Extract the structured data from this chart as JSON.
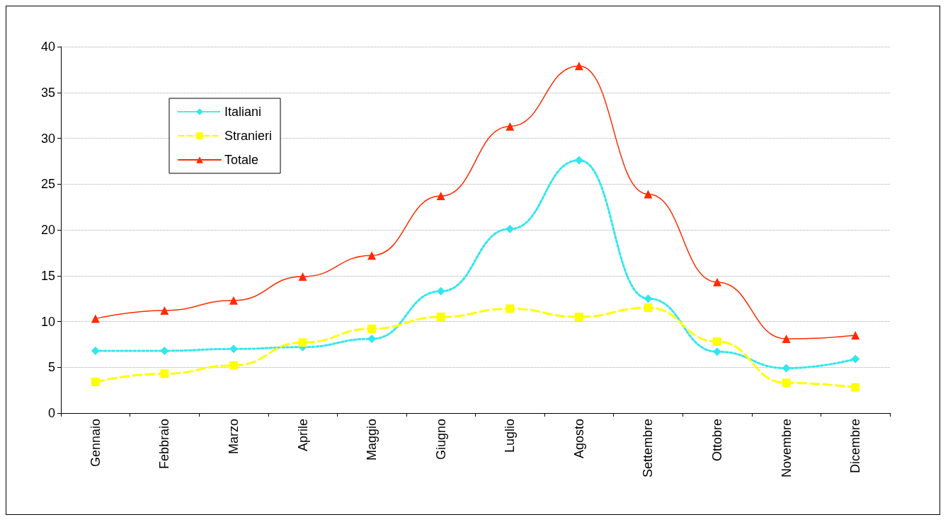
{
  "chart_data": {
    "type": "line",
    "categories": [
      "Gennaio",
      "Febbraio",
      "Marzo",
      "Aprile",
      "Maggio",
      "Giugno",
      "Luglio",
      "Agosto",
      "Settembre",
      "Ottobre",
      "Novembre",
      "Dicembre"
    ],
    "series": [
      {
        "name": "Italiani",
        "color": "#33e6ee",
        "marker": "diamond",
        "line_style": "dotted",
        "values": [
          6.8,
          6.8,
          7.0,
          7.2,
          8.1,
          13.3,
          20.1,
          27.6,
          12.5,
          6.7,
          4.9,
          5.9
        ]
      },
      {
        "name": "Stranieri",
        "color": "#ffff00",
        "marker": "square",
        "line_style": "dashed",
        "values": [
          3.4,
          4.3,
          5.2,
          7.7,
          9.2,
          10.5,
          11.4,
          10.5,
          11.5,
          7.8,
          3.3,
          2.8
        ]
      },
      {
        "name": "Totale",
        "color": "#ff2a00",
        "marker": "triangle",
        "line_style": "solid",
        "values": [
          10.3,
          11.2,
          12.3,
          14.9,
          17.2,
          23.7,
          31.3,
          37.9,
          23.9,
          14.3,
          8.1,
          8.5
        ]
      }
    ],
    "ylim": [
      0,
      40
    ],
    "yticks": [
      0,
      5,
      10,
      15,
      20,
      25,
      30,
      35,
      40
    ],
    "grid": "y",
    "legend": "top left"
  }
}
